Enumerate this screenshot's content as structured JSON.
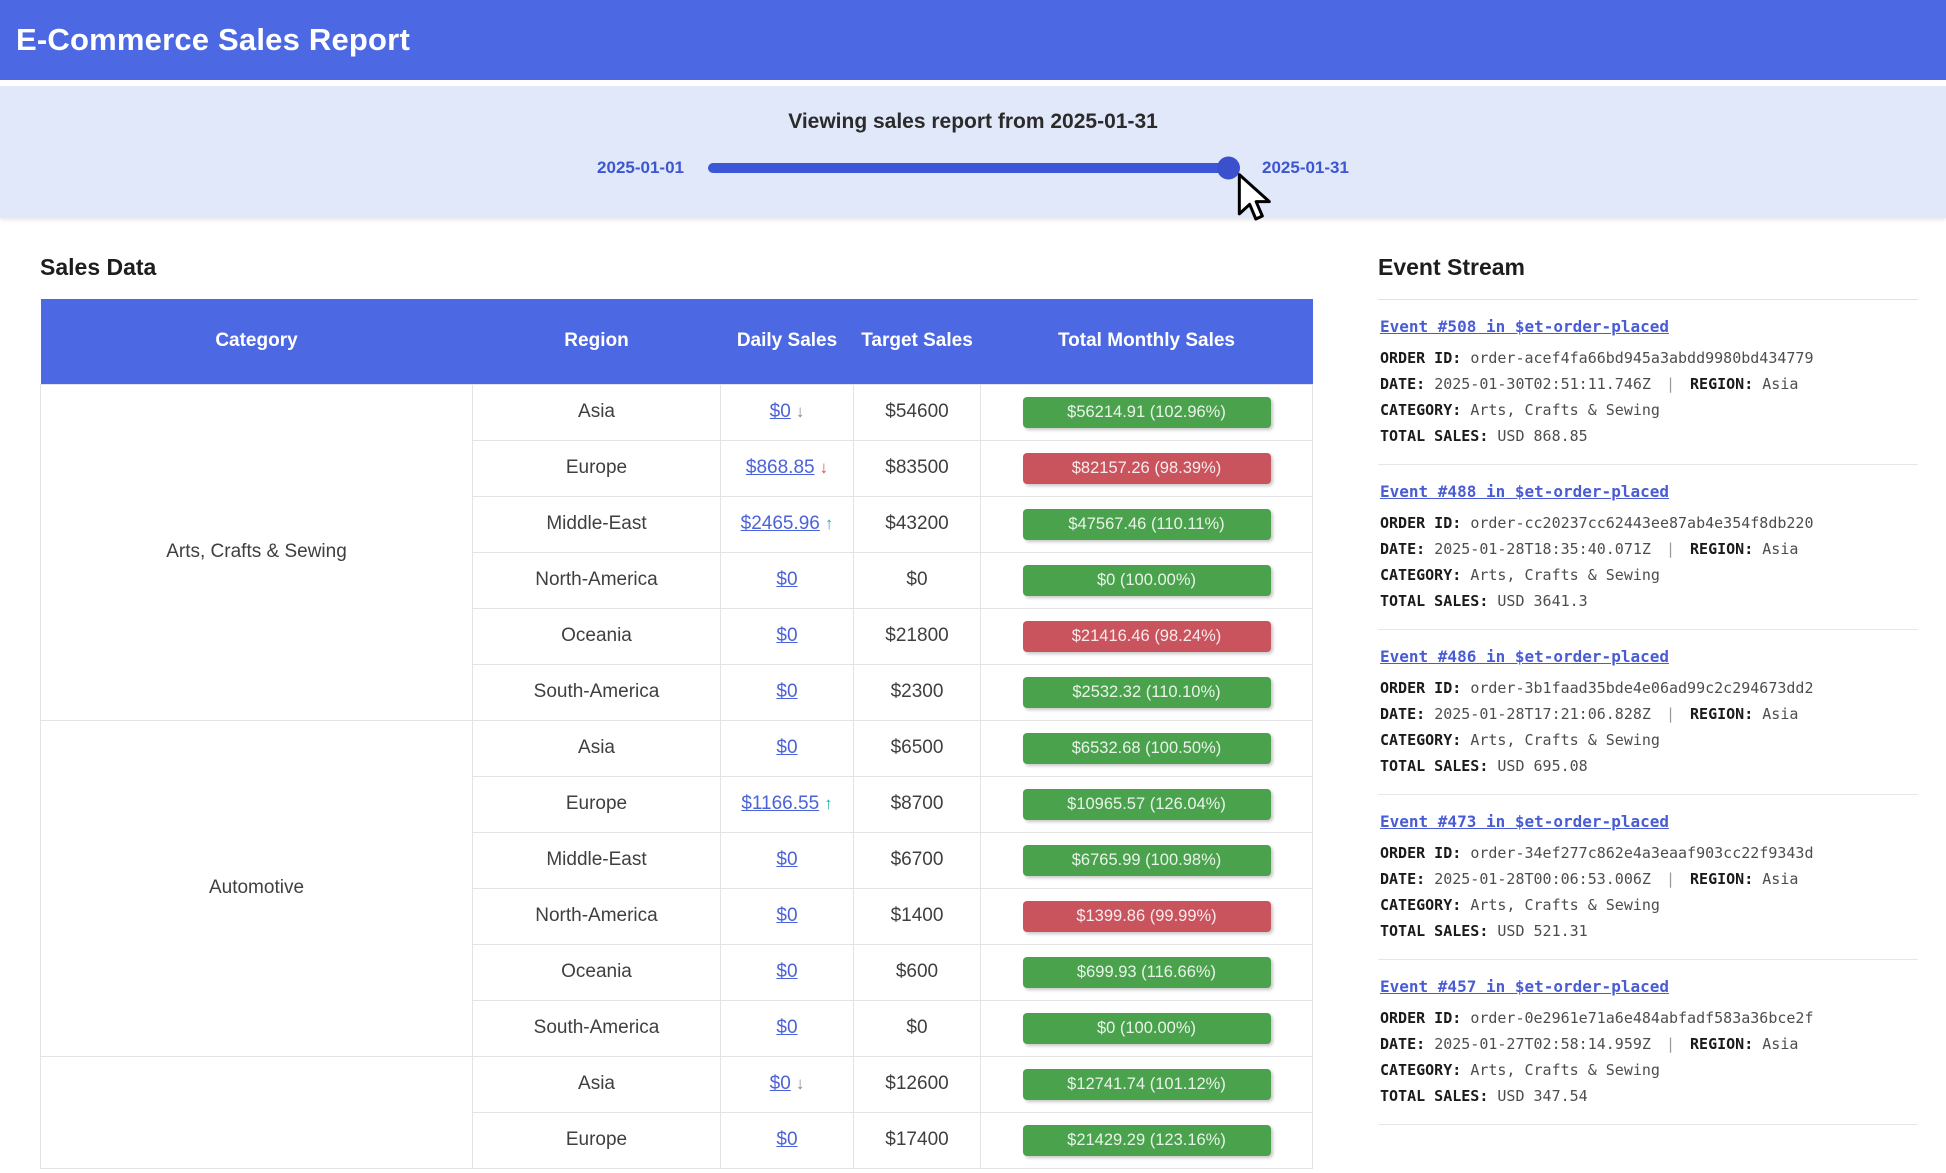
{
  "header": {
    "title": "E-Commerce Sales Report"
  },
  "slider": {
    "title": "Viewing sales report from 2025-01-31",
    "min_label": "2025-01-01",
    "max_label": "2025-01-31",
    "value": "2025-01-31",
    "percent": 100
  },
  "sales": {
    "title": "Sales Data",
    "columns": [
      "Category",
      "Region",
      "Daily Sales",
      "Target Sales",
      "Total Monthly Sales"
    ],
    "rows": [
      {
        "category": "Arts, Crafts & Sewing",
        "category_rowspan": 6,
        "region": "Asia",
        "daily": "$0",
        "arrow": "↓",
        "arrow_tone": "gray",
        "target": "$54600",
        "monthly": "$56214.91 (102.96%)",
        "status": "green",
        "highlight": true
      },
      {
        "region": "Europe",
        "daily": "$868.85",
        "arrow": "↓",
        "arrow_tone": "red",
        "target": "$83500",
        "monthly": "$82157.26 (98.39%)",
        "status": "red"
      },
      {
        "region": "Middle-East",
        "daily": "$2465.96",
        "arrow": "↑",
        "arrow_tone": "teal",
        "target": "$43200",
        "monthly": "$47567.46 (110.11%)",
        "status": "green"
      },
      {
        "region": "North-America",
        "daily": "$0",
        "arrow": "",
        "arrow_tone": "",
        "target": "$0",
        "monthly": "$0 (100.00%)",
        "status": "green"
      },
      {
        "region": "Oceania",
        "daily": "$0",
        "arrow": "",
        "arrow_tone": "",
        "target": "$21800",
        "monthly": "$21416.46 (98.24%)",
        "status": "red"
      },
      {
        "region": "South-America",
        "daily": "$0",
        "arrow": "",
        "arrow_tone": "",
        "target": "$2300",
        "monthly": "$2532.32 (110.10%)",
        "status": "green"
      },
      {
        "category": "Automotive",
        "category_rowspan": 6,
        "region": "Asia",
        "daily": "$0",
        "arrow": "",
        "arrow_tone": "",
        "target": "$6500",
        "monthly": "$6532.68 (100.50%)",
        "status": "green"
      },
      {
        "region": "Europe",
        "daily": "$1166.55",
        "arrow": "↑",
        "arrow_tone": "teal",
        "target": "$8700",
        "monthly": "$10965.57 (126.04%)",
        "status": "green"
      },
      {
        "region": "Middle-East",
        "daily": "$0",
        "arrow": "",
        "arrow_tone": "",
        "target": "$6700",
        "monthly": "$6765.99 (100.98%)",
        "status": "green"
      },
      {
        "region": "North-America",
        "daily": "$0",
        "arrow": "",
        "arrow_tone": "",
        "target": "$1400",
        "monthly": "$1399.86 (99.99%)",
        "status": "red"
      },
      {
        "region": "Oceania",
        "daily": "$0",
        "arrow": "",
        "arrow_tone": "",
        "target": "$600",
        "monthly": "$699.93 (116.66%)",
        "status": "green"
      },
      {
        "region": "South-America",
        "daily": "$0",
        "arrow": "",
        "arrow_tone": "",
        "target": "$0",
        "monthly": "$0 (100.00%)",
        "status": "green"
      },
      {
        "category": "",
        "category_rowspan": 2,
        "region": "Asia",
        "daily": "$0",
        "arrow": "↓",
        "arrow_tone": "gray",
        "target": "$12600",
        "monthly": "$12741.74 (101.12%)",
        "status": "green"
      },
      {
        "region": "Europe",
        "daily": "$0",
        "arrow": "",
        "arrow_tone": "",
        "target": "$17400",
        "monthly": "$21429.29 (123.16%)",
        "status": "green"
      }
    ]
  },
  "events": {
    "title": "Event Stream",
    "labels": {
      "order_id": "ORDER ID:",
      "date": "DATE:",
      "region": "REGION:",
      "category": "CATEGORY:",
      "total_sales": "TOTAL SALES:",
      "separator": "|"
    },
    "items": [
      {
        "title": "Event #508 in $et-order-placed",
        "order_id": "order-acef4fa66bd945a3abdd9980bd434779",
        "date": "2025-01-30T02:51:11.746Z",
        "region": "Asia",
        "category": "Arts, Crafts & Sewing",
        "total_sales": "USD 868.85"
      },
      {
        "title": "Event #488 in $et-order-placed",
        "order_id": "order-cc20237cc62443ee87ab4e354f8db220",
        "date": "2025-01-28T18:35:40.071Z",
        "region": "Asia",
        "category": "Arts, Crafts & Sewing",
        "total_sales": "USD 3641.3"
      },
      {
        "title": "Event #486 in $et-order-placed",
        "order_id": "order-3b1faad35bde4e06ad99c2c294673dd2",
        "date": "2025-01-28T17:21:06.828Z",
        "region": "Asia",
        "category": "Arts, Crafts & Sewing",
        "total_sales": "USD 695.08"
      },
      {
        "title": "Event #473 in $et-order-placed",
        "order_id": "order-34ef277c862e4a3eaaf903cc22f9343d",
        "date": "2025-01-28T00:06:53.006Z",
        "region": "Asia",
        "category": "Arts, Crafts & Sewing",
        "total_sales": "USD 521.31"
      },
      {
        "title": "Event #457 in $et-order-placed",
        "order_id": "order-0e2961e71a6e484abfadf583a36bce2f",
        "date": "2025-01-27T02:58:14.959Z",
        "region": "Asia",
        "category": "Arts, Crafts & Sewing",
        "total_sales": "USD 347.54"
      }
    ]
  },
  "colors": {
    "header_blue": "#4c69e3",
    "slider_bg": "#e1e8fa",
    "slider_track": "#3b57d8",
    "slider_label": "#3d56cf",
    "badge_green": "#4aa24d",
    "badge_red": "#c9545d",
    "link_blue": "#4a63d8",
    "arrow_gray": "#8a8a8a",
    "arrow_red": "#e04f4f",
    "arrow_teal": "#1fb3a6",
    "row_highlight": "#dce7fa"
  }
}
